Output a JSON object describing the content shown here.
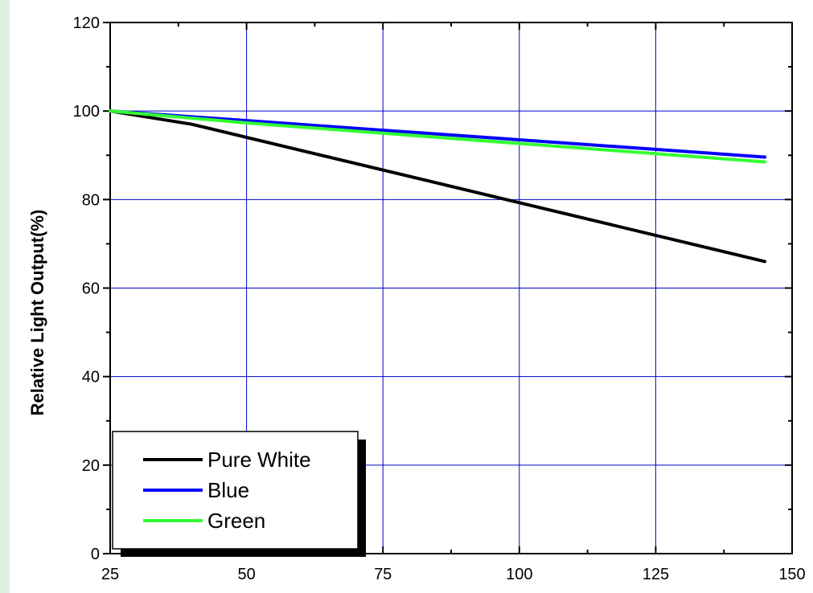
{
  "chart_data": {
    "type": "line",
    "title": "",
    "xlabel": "",
    "ylabel": "Relative Light Output(%)",
    "xlim": [
      25,
      150
    ],
    "ylim": [
      0,
      120
    ],
    "x_ticks": [
      25,
      50,
      75,
      100,
      125,
      150
    ],
    "y_ticks": [
      0,
      20,
      40,
      60,
      80,
      100,
      120
    ],
    "grid": true,
    "legend_position": "bottom-left",
    "series": [
      {
        "name": "Pure White",
        "color": "#000000",
        "x": [
          25,
          40,
          145
        ],
        "y": [
          100,
          97,
          66
        ]
      },
      {
        "name": "Blue",
        "color": "#0000ff",
        "x": [
          25,
          145
        ],
        "y": [
          100,
          89.6
        ]
      },
      {
        "name": "Green",
        "color": "#33ff33",
        "x": [
          25,
          50,
          145
        ],
        "y": [
          100,
          97.3,
          88.5
        ]
      }
    ]
  }
}
